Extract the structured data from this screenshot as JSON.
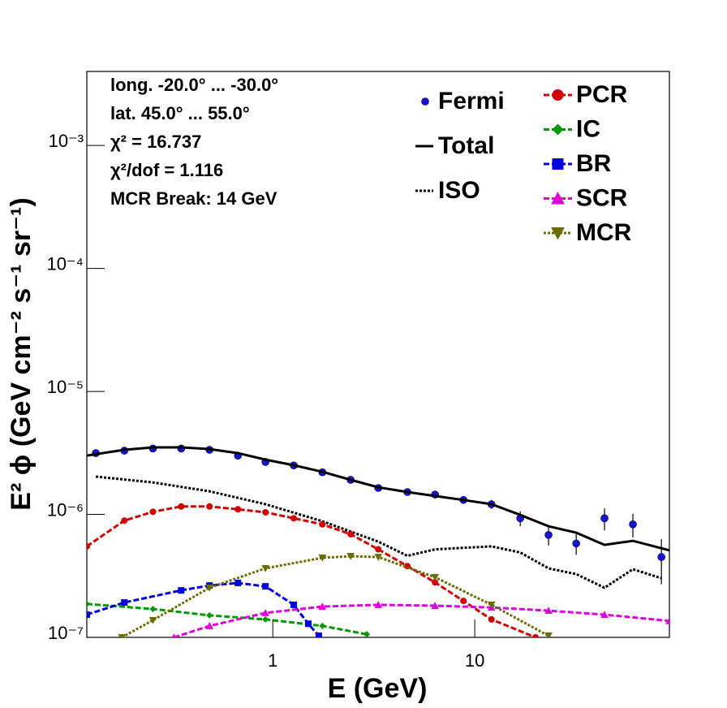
{
  "chart_data": {
    "type": "line",
    "log_x": true,
    "log_y": true,
    "x_label": "E (GeV)",
    "y_label": "E² ϕ (GeV cm⁻² s⁻¹ sr⁻¹)",
    "annotations": [
      "long. -20.0° ... -30.0°",
      "lat. 45.0° ... 55.0°",
      "χ² = 16.737",
      "χ²/dof = 1.116",
      "MCR Break: 14 GeV"
    ],
    "xlim": [
      0.12,
      92
    ],
    "ylim": [
      1e-07,
      0.004
    ],
    "xticks": [
      1,
      10
    ],
    "yticks": [
      {
        "value": 1e-07,
        "label": "10⁻⁷"
      },
      {
        "value": 1e-06,
        "label": "10⁻⁶"
      },
      {
        "value": 1e-05,
        "label": "10⁻⁵"
      },
      {
        "value": 0.0001,
        "label": "10⁻⁴"
      },
      {
        "value": 0.001,
        "label": "10⁻³"
      }
    ],
    "series": [
      {
        "name": "Fermi",
        "type": "scatter",
        "color": "#1515d0",
        "marker": "circle",
        "x": [
          0.133,
          0.184,
          0.255,
          0.352,
          0.486,
          0.672,
          0.92,
          1.27,
          1.76,
          2.43,
          3.33,
          4.64,
          6.36,
          8.79,
          12.1,
          16.8,
          23.2,
          31.8,
          43.9,
          60.7,
          84
        ],
        "values": [
          3.15e-06,
          3.3e-06,
          3.43e-06,
          3.43e-06,
          3.35e-06,
          3e-06,
          2.67e-06,
          2.5e-06,
          2.2e-06,
          1.91e-06,
          1.64e-06,
          1.52e-06,
          1.45e-06,
          1.31e-06,
          1.21e-06,
          9.3e-07,
          6.8e-07,
          5.8e-07,
          9.3e-07,
          8.3e-07,
          4.5e-07
        ],
        "errors": [
          5e-08,
          5e-08,
          5e-08,
          5e-08,
          5e-08,
          5e-08,
          4e-08,
          4e-08,
          4e-08,
          4e-08,
          4e-08,
          5e-08,
          6e-08,
          8e-08,
          1e-07,
          1.3e-07,
          1.2e-07,
          1.1e-07,
          1.9e-07,
          1.8e-07,
          1.8e-07
        ]
      },
      {
        "name": "Total",
        "type": "line",
        "color": "#000000",
        "dash": "solid",
        "x": [
          0.12,
          0.184,
          0.255,
          0.352,
          0.486,
          0.672,
          0.92,
          1.27,
          1.76,
          2.43,
          3.33,
          4.64,
          6.36,
          8.79,
          12.1,
          16.8,
          23.2,
          31.8,
          43.9,
          60.7,
          92
        ],
        "values": [
          3.01e-06,
          3.35e-06,
          3.51e-06,
          3.51e-06,
          3.4e-06,
          3.15e-06,
          2.79e-06,
          2.51e-06,
          2.22e-06,
          1.91e-06,
          1.66e-06,
          1.52e-06,
          1.41e-06,
          1.31e-06,
          1.21e-06,
          9.9e-07,
          8e-07,
          7.1e-07,
          5.65e-07,
          6.1e-07,
          5.1e-07
        ]
      },
      {
        "name": "ISO",
        "type": "line",
        "color": "#000000",
        "dash": "dotted",
        "x": [
          0.133,
          0.255,
          0.486,
          0.92,
          1.76,
          3.33,
          4.64,
          6.36,
          12.1,
          16.8,
          23.2,
          31.8,
          43.9,
          60.7,
          84
        ],
        "values": [
          2.03e-06,
          1.82e-06,
          1.54e-06,
          1.21e-06,
          8.8e-07,
          6e-07,
          4.6e-07,
          5.2e-07,
          5.5e-07,
          4.9e-07,
          3.64e-07,
          3.27e-07,
          2.53e-07,
          3.58e-07,
          3.03e-07
        ]
      },
      {
        "name": "PCR",
        "type": "line",
        "color": "#d00000",
        "dash": "dashed",
        "marker": "circle",
        "x": [
          0.12,
          0.184,
          0.255,
          0.352,
          0.486,
          0.672,
          0.92,
          1.27,
          1.76,
          2.43,
          3.33,
          4.64,
          6.36,
          8.79,
          12.1,
          20
        ],
        "values": [
          5.5e-07,
          8.9e-07,
          1.05e-06,
          1.16e-06,
          1.16e-06,
          1.1e-06,
          1.04e-06,
          9.3e-07,
          8.3e-07,
          6.9e-07,
          5.2e-07,
          3.8e-07,
          2.8e-07,
          1.98e-07,
          1.4e-07,
          1e-07
        ]
      },
      {
        "name": "IC",
        "type": "line",
        "color": "#009a00",
        "dash": "dashed",
        "marker": "diamond",
        "x": [
          0.12,
          0.255,
          0.486,
          0.92,
          1.76,
          2.92
        ],
        "values": [
          1.87e-07,
          1.7e-07,
          1.51e-07,
          1.4e-07,
          1.24e-07,
          1.06e-07
        ]
      },
      {
        "name": "BR",
        "type": "line",
        "color": "#0000dd",
        "dash": "dashed",
        "marker": "square",
        "x": [
          0.12,
          0.184,
          0.352,
          0.486,
          0.672,
          0.92,
          1.27,
          1.5,
          1.69
        ],
        "values": [
          1.53e-07,
          1.92e-07,
          2.41e-07,
          2.64e-07,
          2.77e-07,
          2.6e-07,
          1.84e-07,
          1.29e-07,
          1.03e-07
        ]
      },
      {
        "name": "SCR",
        "type": "line",
        "color": "#dd00dd",
        "dash": "dashed",
        "marker": "triangle-up",
        "x": [
          0.324,
          0.486,
          0.92,
          1.76,
          3.33,
          6.36,
          12.1,
          23.2,
          43.9,
          92
        ],
        "values": [
          1e-07,
          1.24e-07,
          1.58e-07,
          1.78e-07,
          1.84e-07,
          1.81e-07,
          1.75e-07,
          1.65e-07,
          1.53e-07,
          1.36e-07
        ]
      },
      {
        "name": "MCR",
        "type": "line",
        "color": "#6b6b00",
        "dash": "dotted",
        "marker": "triangle-down",
        "x": [
          0.179,
          0.255,
          0.486,
          0.92,
          1.76,
          2.43,
          3.33,
          6.36,
          12.1,
          23.2
        ],
        "values": [
          1e-07,
          1.38e-07,
          2.53e-07,
          3.64e-07,
          4.44e-07,
          4.57e-07,
          4.5e-07,
          3.08e-07,
          1.84e-07,
          1.03e-07
        ]
      }
    ]
  }
}
